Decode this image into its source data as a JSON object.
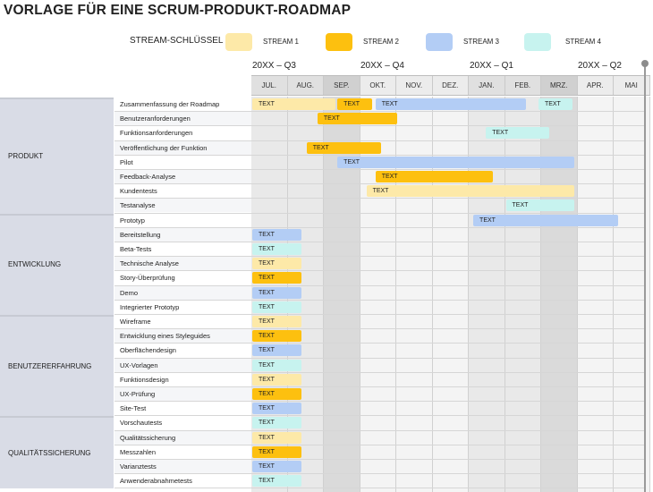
{
  "title": "VORLAGE FÜR EINE SCRUM-PRODUKT-ROADMAP",
  "legend": {
    "label": "STREAM-SCHLÜSSEL",
    "streams": [
      {
        "label": "STREAM 1",
        "color": "#fde9a8"
      },
      {
        "label": "STREAM 2",
        "color": "#fdc00f"
      },
      {
        "label": "STREAM 3",
        "color": "#b3cdf5"
      },
      {
        "label": "STREAM 4",
        "color": "#c7f3ef"
      }
    ]
  },
  "quarters": [
    "20XX – Q3",
    "20XX – Q4",
    "20XX – Q1",
    "20XX – Q2"
  ],
  "months": [
    "JUL.",
    "AUG.",
    "SEP.",
    "OKT.",
    "NOV.",
    "DEZ.",
    "JAN.",
    "FEB.",
    "MRZ.",
    "APR.",
    "MAI"
  ],
  "bar_label": "TEXT",
  "sections": [
    {
      "name": "PRODUKT",
      "tasks": [
        "Zusammenfassung der Roadmap",
        "Benutzeranforderungen",
        "Funktionsanforderungen",
        "Veröffentlichung der Funktion",
        "Pilot",
        "Feedback-Analyse",
        "Kundentests",
        "Testanalyse"
      ]
    },
    {
      "name": "ENTWICKLUNG",
      "tasks": [
        "Prototyp",
        "Bereitstellung",
        "Beta-Tests",
        "Technische Analyse",
        "Story-Überprüfung",
        "Demo",
        "Integrierter Prototyp"
      ]
    },
    {
      "name": "BENUTZERERFAHRUNG",
      "tasks": [
        "Wireframe",
        "Entwicklung eines Styleguides",
        "Oberflächendesign",
        "UX-Vorlagen",
        "Funktionsdesign",
        "UX-Prüfung",
        "Site-Test"
      ]
    },
    {
      "name": "QUALITÄTSSICHERUNG",
      "tasks": [
        "Vorschautests",
        "Qualitätssicherung",
        "Messzahlen",
        "Varianztests",
        "Anwenderabnahmetests"
      ]
    }
  ]
}
